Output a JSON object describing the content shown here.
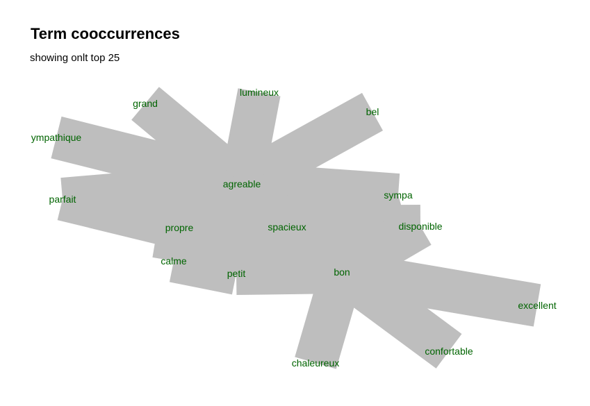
{
  "title": "Term cooccurrences",
  "subtitle": "showing onlt top 25",
  "colors": {
    "edge": "#bebebe",
    "label": "#006400"
  },
  "terms": [
    {
      "id": "lumineux",
      "label": "lumineux"
    },
    {
      "id": "grand",
      "label": "grand"
    },
    {
      "id": "bel",
      "label": "bel"
    },
    {
      "id": "ympathique",
      "label": "ympathique"
    },
    {
      "id": "agreable",
      "label": "agreable"
    },
    {
      "id": "parfait",
      "label": "parfait"
    },
    {
      "id": "sympa",
      "label": "sympa"
    },
    {
      "id": "propre",
      "label": "propre"
    },
    {
      "id": "spacieux",
      "label": "spacieux"
    },
    {
      "id": "disponible",
      "label": "disponible"
    },
    {
      "id": "calme",
      "label": "calme"
    },
    {
      "id": "petit",
      "label": "petit"
    },
    {
      "id": "bon",
      "label": "bon"
    },
    {
      "id": "excellent",
      "label": "excellent"
    },
    {
      "id": "confortable",
      "label": "confortable"
    },
    {
      "id": "chaleureux",
      "label": "chaleureux"
    }
  ],
  "links": [
    [
      "agreable",
      "grand"
    ],
    [
      "agreable",
      "lumineux"
    ],
    [
      "agreable",
      "bel"
    ],
    [
      "agreable",
      "ympathique"
    ],
    [
      "agreable",
      "parfait"
    ],
    [
      "agreable",
      "spacieux"
    ],
    [
      "agreable",
      "propre"
    ],
    [
      "agreable",
      "sympa"
    ],
    [
      "agreable",
      "calme"
    ],
    [
      "agreable",
      "petit"
    ],
    [
      "agreable",
      "bon"
    ],
    [
      "spacieux",
      "disponible"
    ],
    [
      "spacieux",
      "sympa"
    ],
    [
      "spacieux",
      "petit"
    ],
    [
      "spacieux",
      "bon"
    ],
    [
      "spacieux",
      "propre"
    ],
    [
      "spacieux",
      "calme"
    ],
    [
      "bon",
      "excellent"
    ],
    [
      "bon",
      "confortable"
    ],
    [
      "bon",
      "chaleureux"
    ],
    [
      "bon",
      "disponible"
    ],
    [
      "bon",
      "petit"
    ],
    [
      "propre",
      "parfait"
    ],
    [
      "propre",
      "calme"
    ],
    [
      "petit",
      "calme"
    ]
  ]
}
